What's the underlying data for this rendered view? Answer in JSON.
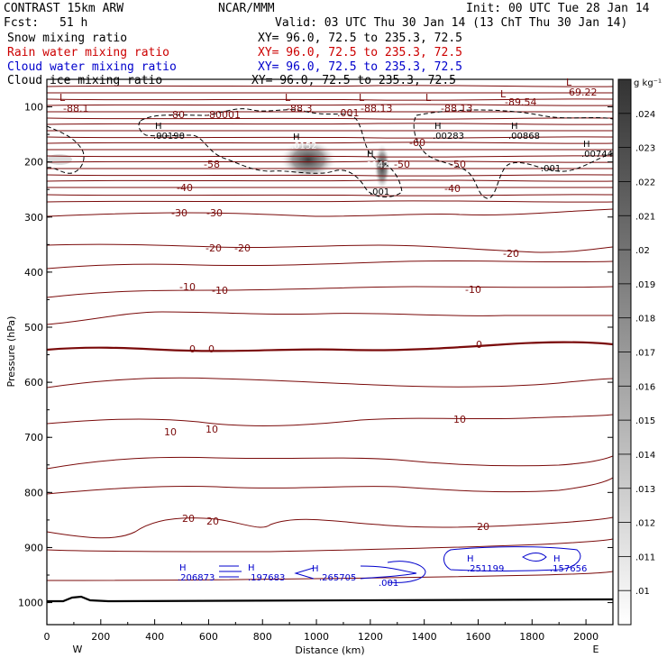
{
  "header": {
    "model": "CONTRAST 15km ARW",
    "org": "NCAR/MMM",
    "init": "Init: 00 UTC Tue 28 Jan 14",
    "fcst_label": "Fcst:",
    "fcst_value": "51 h",
    "valid": "Valid: 03 UTC Thu 30 Jan 14 (13 ChT Thu 30 Jan 14)"
  },
  "legend": [
    {
      "label": "Snow mixing ratio",
      "xy": "XY=  96.0, 72.5 to 235.3, 72.5",
      "color": "#000000"
    },
    {
      "label": "Rain water mixing ratio",
      "xy": "XY=  96.0, 72.5 to 235.3, 72.5",
      "color": "#cc0000"
    },
    {
      "label": "Cloud water mixing ratio",
      "xy": "XY=  96.0, 72.5 to 235.3, 72.5",
      "color": "#0000cc"
    },
    {
      "label": "Cloud ice mixing ratio",
      "xy": "XY=  96.0, 72.5 to 235.3, 72.5",
      "color": "#000000"
    }
  ],
  "colors": {
    "temperature": "#7a0a0a",
    "zero_line": "#7a0a0a",
    "cloud_water": "#0000cc",
    "shade_dark": "#333333",
    "shade_light": "#ffffff"
  },
  "chart_data": {
    "type": "cross-section",
    "xlabel": "Distance (km)",
    "ylabel": "Pressure (hPa)",
    "xlim": [
      0,
      2100
    ],
    "ylim": [
      50,
      1040
    ],
    "x_ticks": [
      "0",
      "200",
      "400",
      "600",
      "800",
      "1000",
      "1200",
      "1400",
      "1600",
      "1800",
      "2000"
    ],
    "y_ticks": [
      "100",
      "200",
      "300",
      "400",
      "500",
      "600",
      "700",
      "800",
      "900",
      "1000"
    ],
    "x_end_labels": {
      "left": "W",
      "right": "E"
    },
    "colorbar": {
      "unit": "g kg⁻¹",
      "labels": [
        ".024",
        ".023",
        ".022",
        ".021",
        ".02",
        ".019",
        ".018",
        ".017",
        ".016",
        ".015",
        ".014",
        ".013",
        ".012",
        ".011",
        ".01"
      ]
    },
    "temperature_labels": [
      "-88.1",
      "-80",
      "-80001",
      "-88.3",
      ".001",
      "-88.13",
      "-88.13",
      "-89.54",
      "-69.22",
      "-60",
      "-50",
      "-58",
      "-50",
      "-40",
      "-40",
      "-30",
      "-30",
      "-20",
      "-20",
      "-20",
      "-10",
      "-10",
      "-10",
      "0",
      "0",
      "0",
      "10",
      "10",
      "10",
      "20",
      "20",
      "20"
    ],
    "max_min_markers": [
      "L",
      "L",
      "L",
      "L",
      "L",
      "L",
      "H",
      "H",
      "H",
      "H",
      "H",
      "H"
    ],
    "field_values": [
      ".00190",
      ".0152",
      ".0142",
      ".00283",
      ".00868",
      ".00744",
      ".001",
      ".001"
    ],
    "cloud_water_values": [
      ".206873",
      ".197683",
      ".265705",
      ".001",
      ".251199",
      ".157656"
    ],
    "cloud_water_markers": [
      "H",
      "H",
      "H",
      "H",
      "H"
    ]
  }
}
